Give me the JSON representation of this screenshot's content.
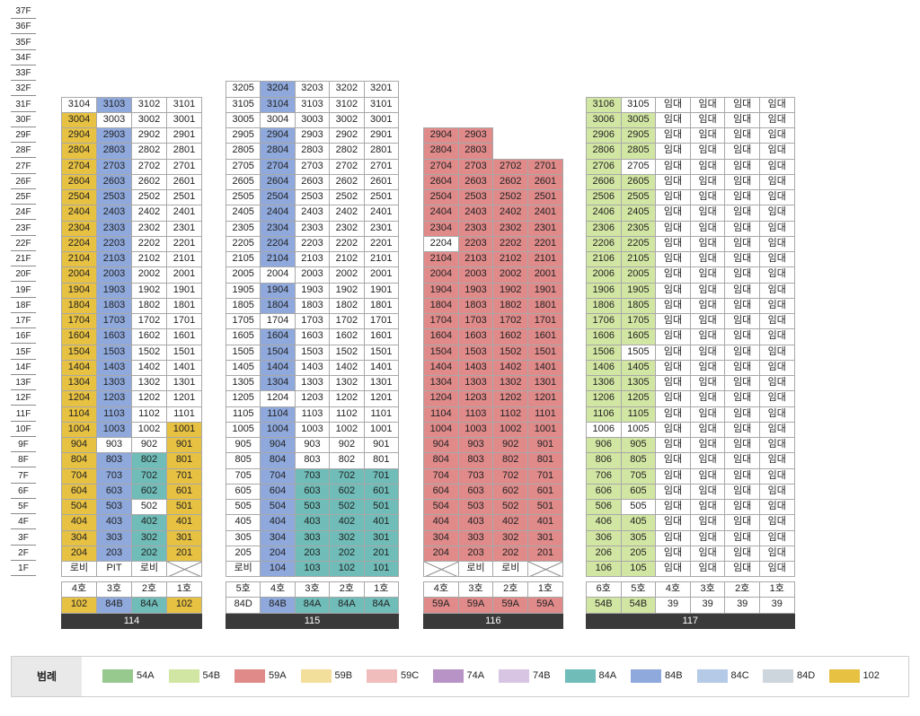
{
  "colors": {
    "54A": "#97c98e",
    "54B": "#d2e6a3",
    "59A": "#e08a8a",
    "59B": "#f3df9c",
    "59C": "#f0bcbc",
    "74A": "#b894c6",
    "74B": "#d8c5e3",
    "84A": "#6fbcb8",
    "84B": "#8fa9dd",
    "84C": "#b4cae6",
    "84D": "#cdd5dd",
    "102": "#e7c142",
    "W": "#ffffff",
    "X": "#ffffff"
  },
  "floors": [
    "37F",
    "36F",
    "35F",
    "34F",
    "33F",
    "32F",
    "31F",
    "30F",
    "29F",
    "28F",
    "27F",
    "26F",
    "25F",
    "24F",
    "23F",
    "22F",
    "21F",
    "20F",
    "19F",
    "18F",
    "17F",
    "16F",
    "15F",
    "14F",
    "13F",
    "12F",
    "11F",
    "10F",
    "9F",
    "8F",
    "7F",
    "6F",
    "5F",
    "4F",
    "3F",
    "2F",
    "1F"
  ],
  "buildings": [
    {
      "name": "114",
      "cols": 4,
      "rows": [
        [
          "3104|W",
          "3103|84B",
          "3102|W",
          "3101|W"
        ],
        [
          "3004|102",
          "3003|W",
          "3002|W",
          "3001|W"
        ],
        [
          "2904|102",
          "2903|84B",
          "2902|W",
          "2901|W"
        ],
        [
          "2804|102",
          "2803|84B",
          "2802|W",
          "2801|W"
        ],
        [
          "2704|102",
          "2703|84B",
          "2702|W",
          "2701|W"
        ],
        [
          "2604|102",
          "2603|84B",
          "2602|W",
          "2601|W"
        ],
        [
          "2504|102",
          "2503|84B",
          "2502|W",
          "2501|W"
        ],
        [
          "2404|102",
          "2403|84B",
          "2402|W",
          "2401|W"
        ],
        [
          "2304|102",
          "2303|84B",
          "2302|W",
          "2301|W"
        ],
        [
          "2204|102",
          "2203|84B",
          "2202|W",
          "2201|W"
        ],
        [
          "2104|102",
          "2103|84B",
          "2102|W",
          "2101|W"
        ],
        [
          "2004|102",
          "2003|84B",
          "2002|W",
          "2001|W"
        ],
        [
          "1904|102",
          "1903|84B",
          "1902|W",
          "1901|W"
        ],
        [
          "1804|102",
          "1803|84B",
          "1802|W",
          "1801|W"
        ],
        [
          "1704|102",
          "1703|84B",
          "1702|W",
          "1701|W"
        ],
        [
          "1604|102",
          "1603|84B",
          "1602|W",
          "1601|W"
        ],
        [
          "1504|102",
          "1503|84B",
          "1502|W",
          "1501|W"
        ],
        [
          "1404|102",
          "1403|84B",
          "1402|W",
          "1401|W"
        ],
        [
          "1304|102",
          "1303|84B",
          "1302|W",
          "1301|W"
        ],
        [
          "1204|102",
          "1203|84B",
          "1202|W",
          "1201|W"
        ],
        [
          "1104|102",
          "1103|84B",
          "1102|W",
          "1101|W"
        ],
        [
          "1004|102",
          "1003|84B",
          "1002|W",
          "1001|102"
        ],
        [
          "904|102",
          "903|W",
          "902|W",
          "901|102"
        ],
        [
          "804|102",
          "803|84B",
          "802|84A",
          "801|102"
        ],
        [
          "704|102",
          "703|84B",
          "702|84A",
          "701|102"
        ],
        [
          "604|102",
          "603|84B",
          "602|84A",
          "601|102"
        ],
        [
          "504|102",
          "503|84B",
          "502|W",
          "501|102"
        ],
        [
          "404|102",
          "403|84B",
          "402|84A",
          "401|102"
        ],
        [
          "304|102",
          "303|84B",
          "302|84A",
          "301|102"
        ],
        [
          "204|102",
          "203|84B",
          "202|84A",
          "201|102"
        ],
        [
          "로비|W",
          "PIT|W",
          "로비|W",
          "|X"
        ]
      ],
      "units": [
        "4호",
        "3호",
        "2호",
        "1호"
      ],
      "types": [
        "102|102",
        "84B|84B",
        "84A|84A",
        "102|102"
      ]
    },
    {
      "name": "115",
      "cols": 5,
      "rows": [
        [
          "3205|W",
          "3204|84B",
          "3203|W",
          "3202|W",
          "3201|W"
        ],
        [
          "3105|W",
          "3104|84B",
          "3103|W",
          "3102|W",
          "3101|W"
        ],
        [
          "3005|W",
          "3004|W",
          "3003|W",
          "3002|W",
          "3001|W"
        ],
        [
          "2905|W",
          "2904|84B",
          "2903|W",
          "2902|W",
          "2901|W"
        ],
        [
          "2805|W",
          "2804|84B",
          "2803|W",
          "2802|W",
          "2801|W"
        ],
        [
          "2705|W",
          "2704|84B",
          "2703|W",
          "2702|W",
          "2701|W"
        ],
        [
          "2605|W",
          "2604|84B",
          "2603|W",
          "2602|W",
          "2601|W"
        ],
        [
          "2505|W",
          "2504|84B",
          "2503|W",
          "2502|W",
          "2501|W"
        ],
        [
          "2405|W",
          "2404|84B",
          "2403|W",
          "2402|W",
          "2401|W"
        ],
        [
          "2305|W",
          "2304|84B",
          "2303|W",
          "2302|W",
          "2301|W"
        ],
        [
          "2205|W",
          "2204|84B",
          "2203|W",
          "2202|W",
          "2201|W"
        ],
        [
          "2105|W",
          "2104|84B",
          "2103|W",
          "2102|W",
          "2101|W"
        ],
        [
          "2005|W",
          "2004|W",
          "2003|W",
          "2002|W",
          "2001|W"
        ],
        [
          "1905|W",
          "1904|84B",
          "1903|W",
          "1902|W",
          "1901|W"
        ],
        [
          "1805|W",
          "1804|84B",
          "1803|W",
          "1802|W",
          "1801|W"
        ],
        [
          "1705|W",
          "1704|W",
          "1703|W",
          "1702|W",
          "1701|W"
        ],
        [
          "1605|W",
          "1604|84B",
          "1603|W",
          "1602|W",
          "1601|W"
        ],
        [
          "1505|W",
          "1504|84B",
          "1503|W",
          "1502|W",
          "1501|W"
        ],
        [
          "1405|W",
          "1404|84B",
          "1403|W",
          "1402|W",
          "1401|W"
        ],
        [
          "1305|W",
          "1304|84B",
          "1303|W",
          "1302|W",
          "1301|W"
        ],
        [
          "1205|W",
          "1204|W",
          "1203|W",
          "1202|W",
          "1201|W"
        ],
        [
          "1105|W",
          "1104|84B",
          "1103|W",
          "1102|W",
          "1101|W"
        ],
        [
          "1005|W",
          "1004|84B",
          "1003|W",
          "1002|W",
          "1001|W"
        ],
        [
          "905|W",
          "904|84B",
          "903|W",
          "902|W",
          "901|W"
        ],
        [
          "805|W",
          "804|84B",
          "803|W",
          "802|W",
          "801|W"
        ],
        [
          "705|W",
          "704|84B",
          "703|84A",
          "702|84A",
          "701|84A"
        ],
        [
          "605|W",
          "604|84B",
          "603|84A",
          "602|84A",
          "601|84A"
        ],
        [
          "505|W",
          "504|84B",
          "503|84A",
          "502|84A",
          "501|84A"
        ],
        [
          "405|W",
          "404|84B",
          "403|84A",
          "402|84A",
          "401|84A"
        ],
        [
          "305|W",
          "304|84B",
          "303|84A",
          "302|84A",
          "301|84A"
        ],
        [
          "205|W",
          "204|84B",
          "203|84A",
          "202|84A",
          "201|84A"
        ],
        [
          "로비|W",
          "104|84B",
          "103|84A",
          "102|84A",
          "101|84A"
        ]
      ],
      "units": [
        "5호",
        "4호",
        "3호",
        "2호",
        "1호"
      ],
      "types": [
        "84D|W",
        "84B|84B",
        "84A|84A",
        "84A|84A",
        "84A|84A"
      ]
    },
    {
      "name": "116",
      "cols": 4,
      "rows": [
        [
          "2904|59A",
          "2903|59A",
          "",
          ""
        ],
        [
          "2804|59A",
          "2803|59A",
          "",
          ""
        ],
        [
          "2704|59A",
          "2703|59A",
          "2702|59A",
          "2701|59A"
        ],
        [
          "2604|59A",
          "2603|59A",
          "2602|59A",
          "2601|59A"
        ],
        [
          "2504|59A",
          "2503|59A",
          "2502|59A",
          "2501|59A"
        ],
        [
          "2404|59A",
          "2403|59A",
          "2402|59A",
          "2401|59A"
        ],
        [
          "2304|59A",
          "2303|59A",
          "2302|59A",
          "2301|59A"
        ],
        [
          "2204|W",
          "2203|59A",
          "2202|59A",
          "2201|59A"
        ],
        [
          "2104|59A",
          "2103|59A",
          "2102|59A",
          "2101|59A"
        ],
        [
          "2004|59A",
          "2003|59A",
          "2002|59A",
          "2001|59A"
        ],
        [
          "1904|59A",
          "1903|59A",
          "1902|59A",
          "1901|59A"
        ],
        [
          "1804|59A",
          "1803|59A",
          "1802|59A",
          "1801|59A"
        ],
        [
          "1704|59A",
          "1703|59A",
          "1702|59A",
          "1701|59A"
        ],
        [
          "1604|59A",
          "1603|59A",
          "1602|59A",
          "1601|59A"
        ],
        [
          "1504|59A",
          "1503|59A",
          "1502|59A",
          "1501|59A"
        ],
        [
          "1404|59A",
          "1403|59A",
          "1402|59A",
          "1401|59A"
        ],
        [
          "1304|59A",
          "1303|59A",
          "1302|59A",
          "1301|59A"
        ],
        [
          "1204|59A",
          "1203|59A",
          "1202|59A",
          "1201|59A"
        ],
        [
          "1104|59A",
          "1103|59A",
          "1102|59A",
          "1101|59A"
        ],
        [
          "1004|59A",
          "1003|59A",
          "1002|59A",
          "1001|59A"
        ],
        [
          "904|59A",
          "903|59A",
          "902|59A",
          "901|59A"
        ],
        [
          "804|59A",
          "803|59A",
          "802|59A",
          "801|59A"
        ],
        [
          "704|59A",
          "703|59A",
          "702|59A",
          "701|59A"
        ],
        [
          "604|59A",
          "603|59A",
          "602|59A",
          "601|59A"
        ],
        [
          "504|59A",
          "503|59A",
          "502|59A",
          "501|59A"
        ],
        [
          "404|59A",
          "403|59A",
          "402|59A",
          "401|59A"
        ],
        [
          "304|59A",
          "303|59A",
          "302|59A",
          "301|59A"
        ],
        [
          "204|59A",
          "203|59A",
          "202|59A",
          "201|59A"
        ],
        [
          "|X",
          "로비|W",
          "로비|W",
          "|X"
        ]
      ],
      "units": [
        "4호",
        "3호",
        "2호",
        "1호"
      ],
      "types": [
        "59A|59A",
        "59A|59A",
        "59A|59A",
        "59A|59A"
      ]
    },
    {
      "name": "117",
      "cols": 6,
      "rows": [
        [
          "3106|54B",
          "3105|W",
          "임대|W",
          "임대|W",
          "임대|W",
          "임대|W"
        ],
        [
          "3006|54B",
          "3005|54B",
          "임대|W",
          "임대|W",
          "임대|W",
          "임대|W"
        ],
        [
          "2906|54B",
          "2905|54B",
          "임대|W",
          "임대|W",
          "임대|W",
          "임대|W"
        ],
        [
          "2806|54B",
          "2805|54B",
          "임대|W",
          "임대|W",
          "임대|W",
          "임대|W"
        ],
        [
          "2706|54B",
          "2705|W",
          "임대|W",
          "임대|W",
          "임대|W",
          "임대|W"
        ],
        [
          "2606|54B",
          "2605|54B",
          "임대|W",
          "임대|W",
          "임대|W",
          "임대|W"
        ],
        [
          "2506|54B",
          "2505|54B",
          "임대|W",
          "임대|W",
          "임대|W",
          "임대|W"
        ],
        [
          "2406|54B",
          "2405|54B",
          "임대|W",
          "임대|W",
          "임대|W",
          "임대|W"
        ],
        [
          "2306|54B",
          "2305|54B",
          "임대|W",
          "임대|W",
          "임대|W",
          "임대|W"
        ],
        [
          "2206|54B",
          "2205|54B",
          "임대|W",
          "임대|W",
          "임대|W",
          "임대|W"
        ],
        [
          "2106|54B",
          "2105|54B",
          "임대|W",
          "임대|W",
          "임대|W",
          "임대|W"
        ],
        [
          "2006|54B",
          "2005|54B",
          "임대|W",
          "임대|W",
          "임대|W",
          "임대|W"
        ],
        [
          "1906|54B",
          "1905|54B",
          "임대|W",
          "임대|W",
          "임대|W",
          "임대|W"
        ],
        [
          "1806|54B",
          "1805|54B",
          "임대|W",
          "임대|W",
          "임대|W",
          "임대|W"
        ],
        [
          "1706|54B",
          "1705|54B",
          "임대|W",
          "임대|W",
          "임대|W",
          "임대|W"
        ],
        [
          "1606|54B",
          "1605|54B",
          "임대|W",
          "임대|W",
          "임대|W",
          "임대|W"
        ],
        [
          "1506|54B",
          "1505|W",
          "임대|W",
          "임대|W",
          "임대|W",
          "임대|W"
        ],
        [
          "1406|54B",
          "1405|54B",
          "임대|W",
          "임대|W",
          "임대|W",
          "임대|W"
        ],
        [
          "1306|54B",
          "1305|54B",
          "임대|W",
          "임대|W",
          "임대|W",
          "임대|W"
        ],
        [
          "1206|54B",
          "1205|54B",
          "임대|W",
          "임대|W",
          "임대|W",
          "임대|W"
        ],
        [
          "1106|54B",
          "1105|54B",
          "임대|W",
          "임대|W",
          "임대|W",
          "임대|W"
        ],
        [
          "1006|W",
          "1005|W",
          "임대|W",
          "임대|W",
          "임대|W",
          "임대|W"
        ],
        [
          "906|54B",
          "905|54B",
          "임대|W",
          "임대|W",
          "임대|W",
          "임대|W"
        ],
        [
          "806|54B",
          "805|54B",
          "임대|W",
          "임대|W",
          "임대|W",
          "임대|W"
        ],
        [
          "706|54B",
          "705|54B",
          "임대|W",
          "임대|W",
          "임대|W",
          "임대|W"
        ],
        [
          "606|54B",
          "605|54B",
          "임대|W",
          "임대|W",
          "임대|W",
          "임대|W"
        ],
        [
          "506|54B",
          "505|W",
          "임대|W",
          "임대|W",
          "임대|W",
          "임대|W"
        ],
        [
          "406|54B",
          "405|54B",
          "임대|W",
          "임대|W",
          "임대|W",
          "임대|W"
        ],
        [
          "306|54B",
          "305|54B",
          "임대|W",
          "임대|W",
          "임대|W",
          "임대|W"
        ],
        [
          "206|54B",
          "205|54B",
          "임대|W",
          "임대|W",
          "임대|W",
          "임대|W"
        ],
        [
          "106|54B",
          "105|54B",
          "임대|W",
          "임대|W",
          "임대|W",
          "임대|W"
        ]
      ],
      "units": [
        "6호",
        "5호",
        "4호",
        "3호",
        "2호",
        "1호"
      ],
      "types": [
        "54B|54B",
        "54B|54B",
        "39|W",
        "39|W",
        "39|W",
        "39|W"
      ]
    }
  ],
  "legend": {
    "title": "범례",
    "items": [
      {
        "label": "54A",
        "color": "#97c98e"
      },
      {
        "label": "54B",
        "color": "#d2e6a3"
      },
      {
        "label": "59A",
        "color": "#e08a8a"
      },
      {
        "label": "59B",
        "color": "#f3df9c"
      },
      {
        "label": "59C",
        "color": "#f0bcbc"
      },
      {
        "label": "74A",
        "color": "#b894c6"
      },
      {
        "label": "74B",
        "color": "#d8c5e3"
      },
      {
        "label": "84A",
        "color": "#6fbcb8"
      },
      {
        "label": "84B",
        "color": "#8fa9dd"
      },
      {
        "label": "84C",
        "color": "#b4cae6"
      },
      {
        "label": "84D",
        "color": "#cdd5dd"
      },
      {
        "label": "102",
        "color": "#e7c142"
      }
    ]
  }
}
